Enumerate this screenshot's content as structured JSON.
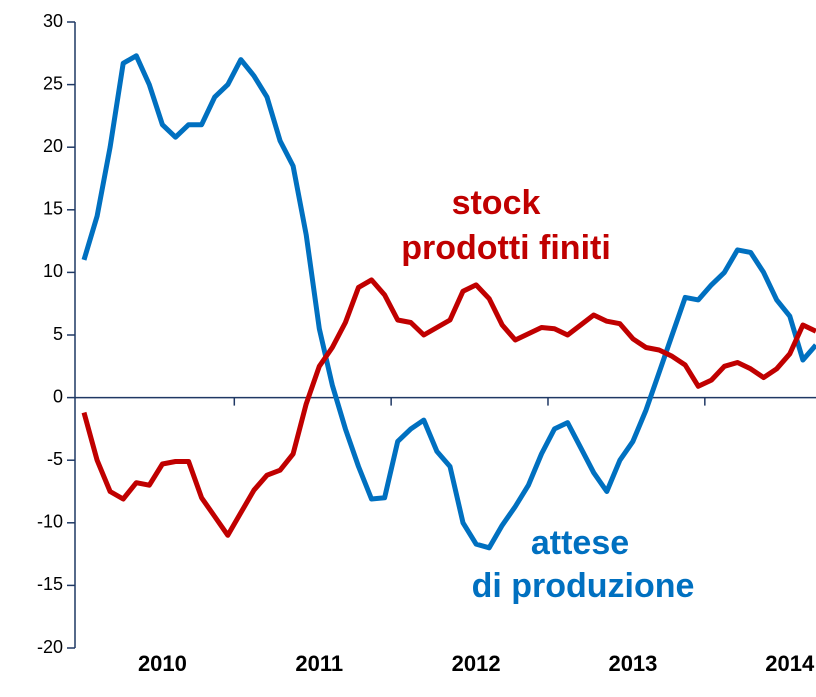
{
  "chart_data": {
    "type": "line",
    "categories": [
      null,
      null,
      null,
      null,
      null,
      null,
      "2010",
      null,
      null,
      null,
      null,
      null,
      null,
      null,
      null,
      null,
      null,
      null,
      "2011",
      null,
      null,
      null,
      null,
      null,
      null,
      null,
      null,
      null,
      null,
      null,
      "2012",
      null,
      null,
      null,
      null,
      null,
      null,
      null,
      null,
      null,
      null,
      null,
      "2013",
      null,
      null,
      null,
      null,
      null,
      null,
      null,
      null,
      null,
      null,
      null,
      "2014",
      null,
      null
    ],
    "series": [
      {
        "name": "attese di produzione",
        "color": "#0070c0",
        "values": [
          11,
          14.5,
          20,
          26.7,
          27.3,
          25,
          21.8,
          20.8,
          21.8,
          21.8,
          24,
          25,
          27,
          25.7,
          24,
          20.5,
          18.5,
          13,
          5.5,
          1,
          -2.5,
          -5.5,
          -8.1,
          -8,
          -3.5,
          -2.5,
          -1.8,
          -4.3,
          -5.5,
          -10,
          -11.7,
          -12,
          -10.2,
          -8.7,
          -7,
          -4.5,
          -2.5,
          -2,
          -4,
          -6,
          -7.5,
          -5,
          -3.5,
          -1,
          2,
          5,
          8,
          7.8,
          9,
          10,
          11.8,
          11.6,
          10,
          7.8,
          6.5,
          3,
          4.2
        ]
      },
      {
        "name": "stock prodotti finiti",
        "color": "#c00000",
        "values": [
          -1.2,
          -5,
          -7.5,
          -8.1,
          -6.8,
          -7,
          -5.3,
          -5.1,
          -5.1,
          -8,
          -9.5,
          -11,
          -9.2,
          -7.4,
          -6.2,
          -5.8,
          -4.5,
          -0.5,
          2.5,
          4,
          6,
          8.8,
          9.4,
          8.2,
          6.2,
          6,
          5,
          5.6,
          6.2,
          8.5,
          9,
          7.9,
          5.8,
          4.6,
          5.1,
          5.6,
          5.5,
          5,
          5.8,
          6.6,
          6.1,
          5.9,
          4.7,
          4,
          3.8,
          3.3,
          2.6,
          0.9,
          1.4,
          2.5,
          2.8,
          2.3,
          1.6,
          2.3,
          3.5,
          5.8,
          5.3
        ]
      }
    ],
    "annotations": [
      {
        "text": "stock",
        "series": 1
      },
      {
        "text": "prodotti finiti",
        "series": 1
      },
      {
        "text": "attese",
        "series": 0
      },
      {
        "text": "di produzione",
        "series": 0
      }
    ],
    "ylim": [
      -20,
      30
    ],
    "yticks": [
      -20,
      -15,
      -10,
      -5,
      0,
      5,
      10,
      15,
      20,
      25,
      30
    ]
  }
}
